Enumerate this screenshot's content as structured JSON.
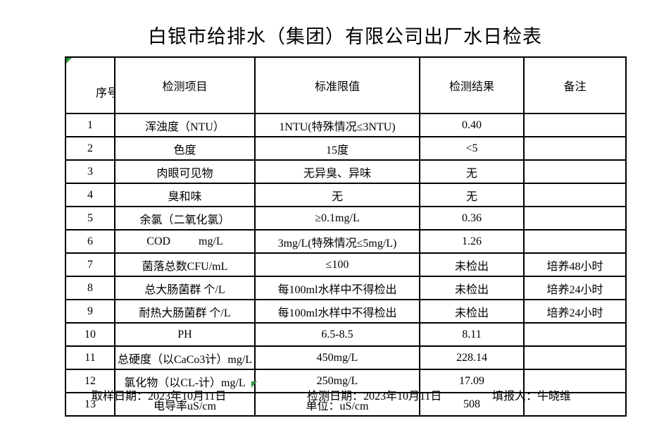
{
  "title": "白银市给排水（集团）有限公司出厂水日检表",
  "table": {
    "headers": [
      "序号",
      "检测项目",
      "标准限值",
      "检测结果",
      "备注"
    ],
    "rows": [
      {
        "no": "1",
        "item": "浑浊度（NTU）",
        "limit": "1NTU(特殊情况≤3NTU)",
        "result": "0.40",
        "note": ""
      },
      {
        "no": "2",
        "item": "色度",
        "limit": "15度",
        "result": "<5",
        "note": ""
      },
      {
        "no": "3",
        "item": "肉眼可见物",
        "limit": "无异臭、异味",
        "result": "无",
        "note": ""
      },
      {
        "no": "4",
        "item": "臭和味",
        "limit": "无",
        "result": "无",
        "note": ""
      },
      {
        "no": "5",
        "item": "余氯（二氧化氯）",
        "limit": "≥0.1mg/L",
        "result": "0.36",
        "note": ""
      },
      {
        "no": "6",
        "item": "COD          mg/L",
        "limit": "3mg/L(特殊情况≤5mg/L)",
        "result": "1.26",
        "note": ""
      },
      {
        "no": "7",
        "item": "菌落总数CFU/mL",
        "limit": "≤100",
        "result": "未检出",
        "note": "培养48小时"
      },
      {
        "no": "8",
        "item": "总大肠菌群 个/L",
        "limit": "每100ml水样中不得检出",
        "result": "未检出",
        "note": "培养24小时"
      },
      {
        "no": "9",
        "item": "耐热大肠菌群 个/L",
        "limit": "每100ml水样中不得检出",
        "result": "未检出",
        "note": "培养24小时"
      },
      {
        "no": "10",
        "item": "PH",
        "limit": "6.5-8.5",
        "result": "8.11",
        "note": ""
      },
      {
        "no": "11",
        "item": "总硬度（以CaCo3计）mg/L",
        "limit": "450mg/L",
        "result": "228.14",
        "note": ""
      },
      {
        "no": "12",
        "item": "氯化物（以CL-计）mg/L",
        "limit": "250mg/L",
        "result": "17.09",
        "note": ""
      },
      {
        "no": "13",
        "item": "电导率uS/cm",
        "limit": "单位：uS/cm",
        "result": "508",
        "note": ""
      }
    ]
  },
  "footer": {
    "sample_date": "取样日期：2023年10月11日",
    "test_date": "检测日期：2023年10月11日",
    "reporter": "填报人：牛晓维"
  },
  "markers": {
    "green_triangle_color": "#2d9640",
    "border_color": "#000000",
    "background_color": "#ffffff"
  }
}
